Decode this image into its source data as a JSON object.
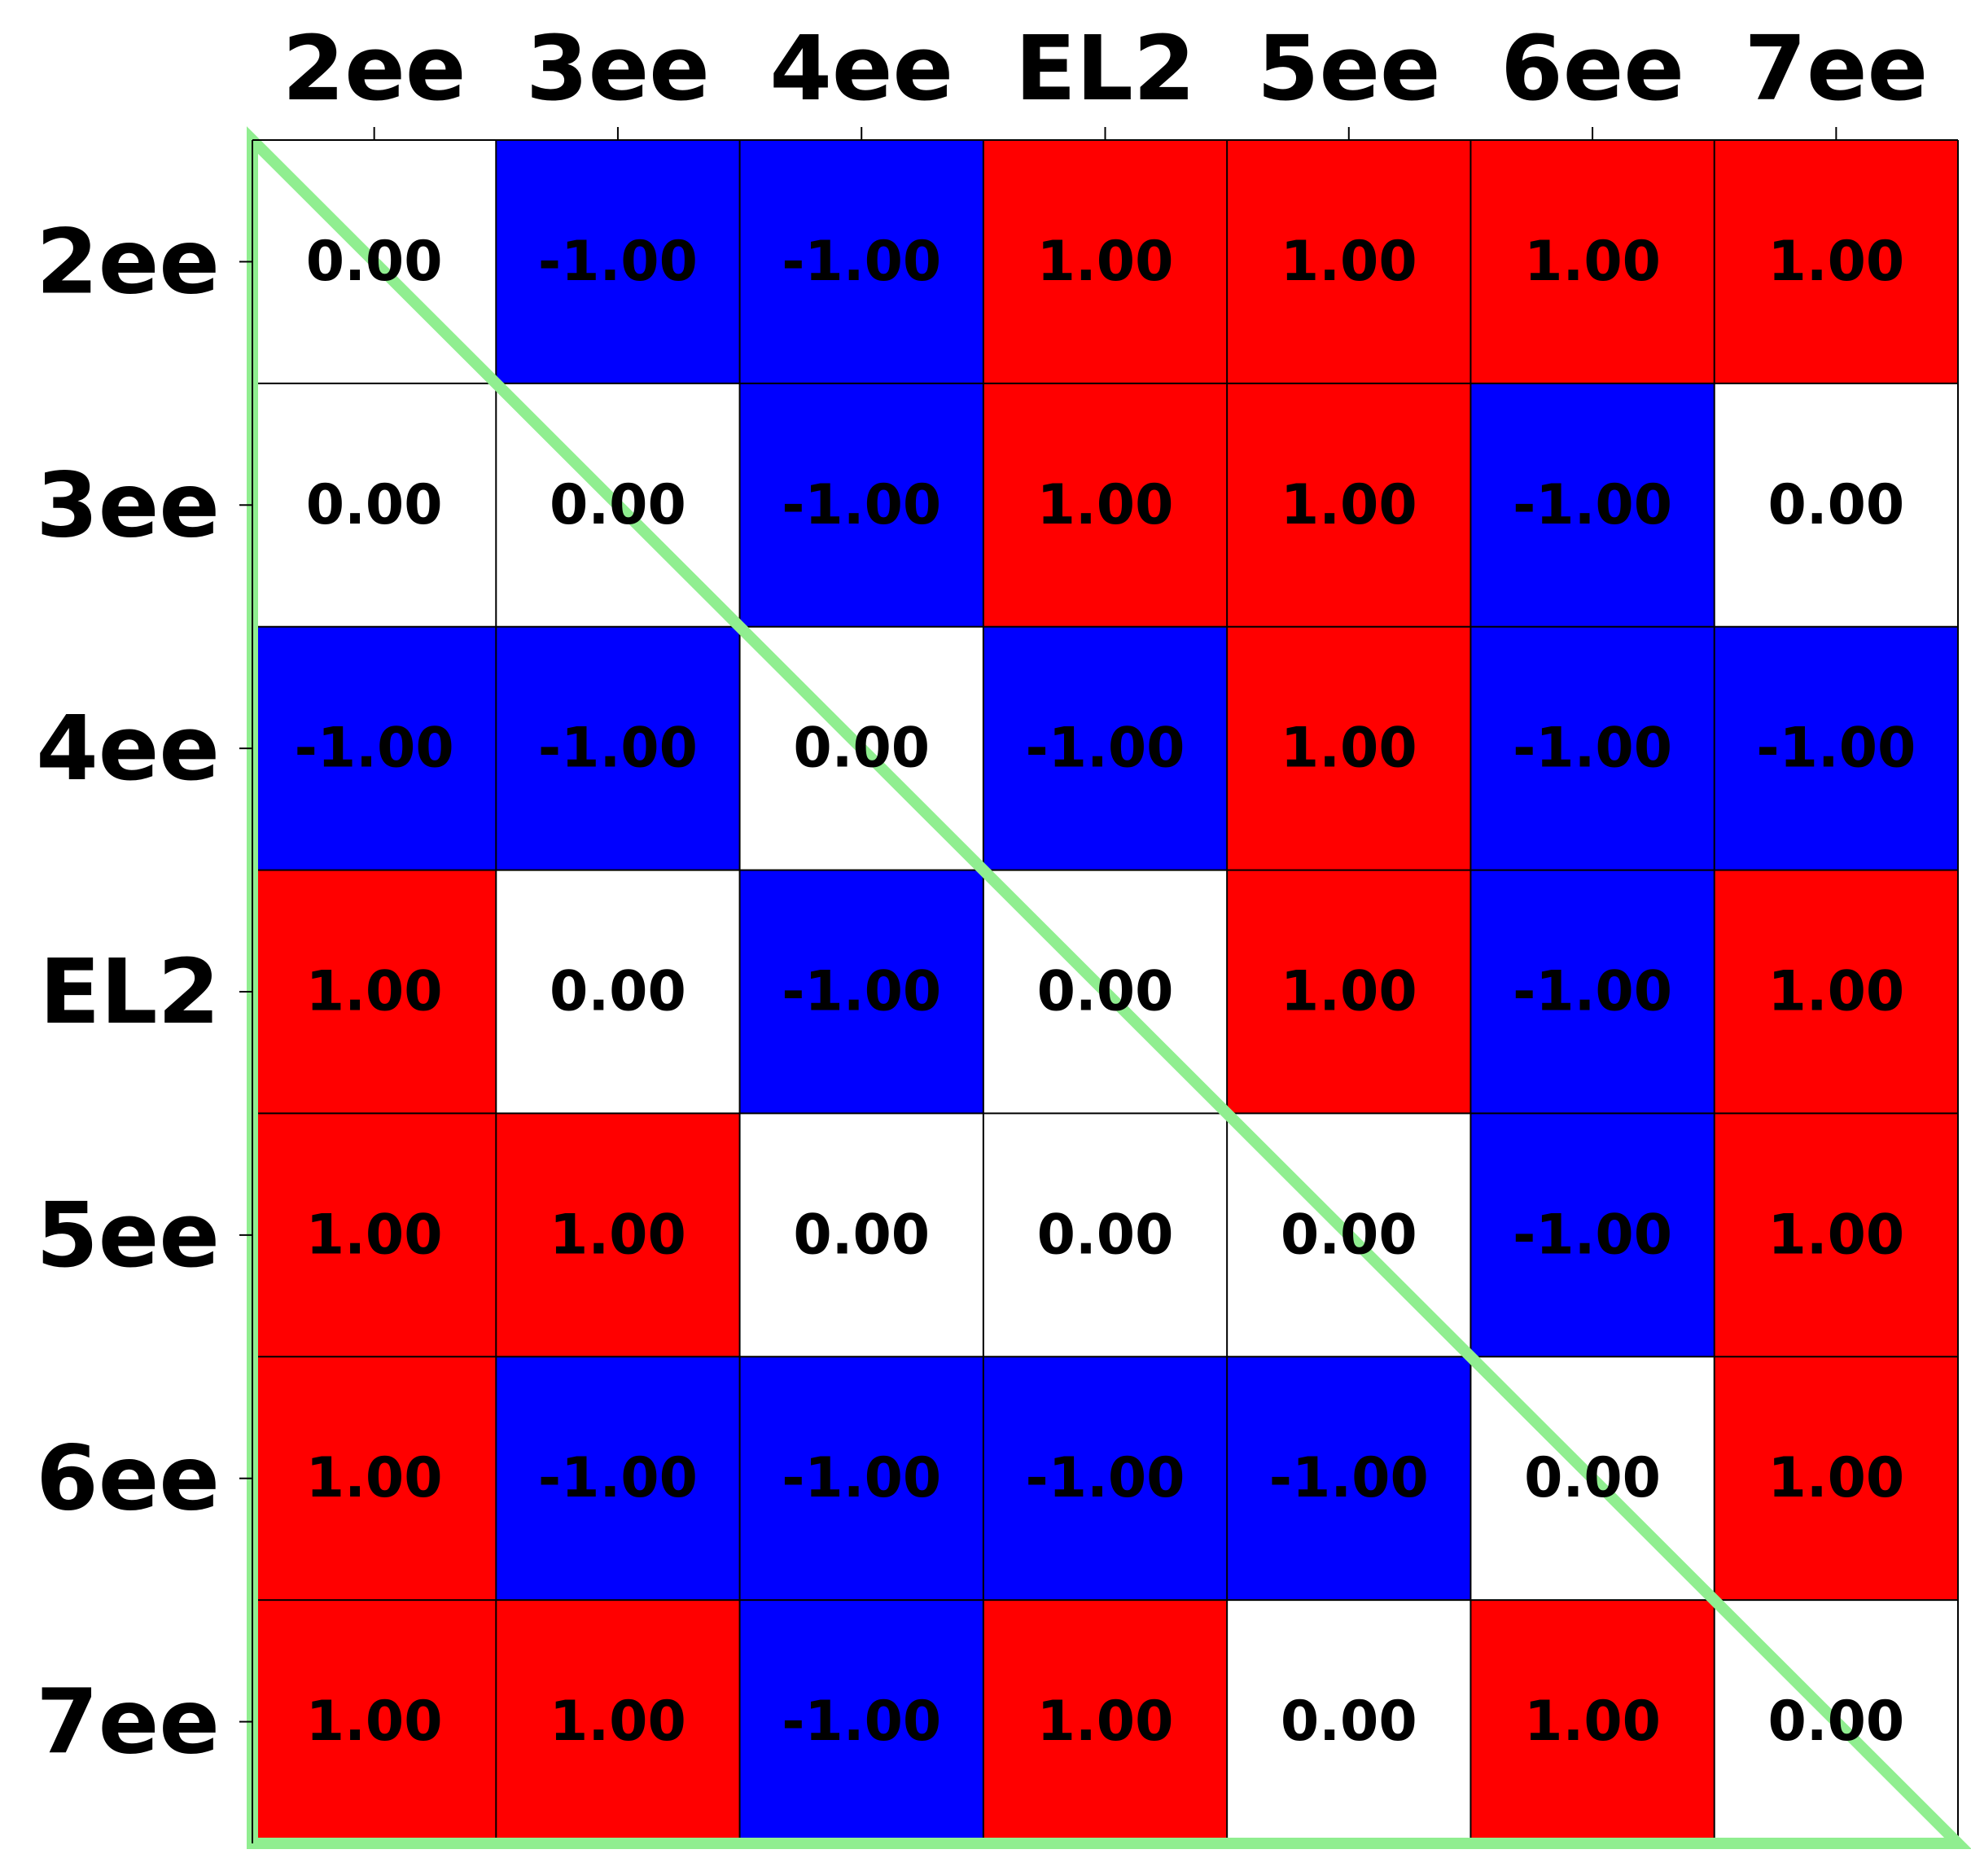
{
  "chart_data": {
    "type": "heatmap",
    "title": "",
    "xlabel": "",
    "ylabel": "",
    "x_categories": [
      "2ee",
      "3ee",
      "4ee",
      "EL2",
      "5ee",
      "6ee",
      "7ee"
    ],
    "y_categories": [
      "2ee",
      "3ee",
      "4ee",
      "EL2",
      "5ee",
      "6ee",
      "7ee"
    ],
    "x_axis_position": "top",
    "values": [
      [
        0,
        -1,
        -1,
        1,
        1,
        1,
        1
      ],
      [
        0,
        0,
        -1,
        1,
        1,
        -1,
        0
      ],
      [
        -1,
        -1,
        0,
        -1,
        1,
        -1,
        -1
      ],
      [
        1,
        0,
        -1,
        0,
        1,
        -1,
        1
      ],
      [
        1,
        1,
        0,
        0,
        0,
        -1,
        1
      ],
      [
        1,
        -1,
        -1,
        -1,
        -1,
        0,
        1
      ],
      [
        1,
        1,
        -1,
        1,
        0,
        1,
        0
      ]
    ],
    "cell_labels": [
      [
        "0.00",
        "-1.00",
        "-1.00",
        "1.00",
        "1.00",
        "1.00",
        "1.00"
      ],
      [
        "0.00",
        "0.00",
        "-1.00",
        "1.00",
        "1.00",
        "-1.00",
        "0.00"
      ],
      [
        "-1.00",
        "-1.00",
        "0.00",
        "-1.00",
        "1.00",
        "-1.00",
        "-1.00"
      ],
      [
        "1.00",
        "0.00",
        "-1.00",
        "0.00",
        "1.00",
        "-1.00",
        "1.00"
      ],
      [
        "1.00",
        "1.00",
        "0.00",
        "0.00",
        "0.00",
        "-1.00",
        "1.00"
      ],
      [
        "1.00",
        "-1.00",
        "-1.00",
        "-1.00",
        "-1.00",
        "0.00",
        "1.00"
      ],
      [
        "1.00",
        "1.00",
        "-1.00",
        "1.00",
        "0.00",
        "1.00",
        "0.00"
      ]
    ],
    "value_range": [
      -1,
      1
    ],
    "color_map": {
      "negative": "#0000ff",
      "zero": "#ffffff",
      "positive": "#ff0000"
    },
    "grid": true,
    "grid_color": "#000000",
    "overlay": {
      "shape": "lower-left-triangle",
      "color": "#90ee90"
    },
    "legend": "none"
  }
}
